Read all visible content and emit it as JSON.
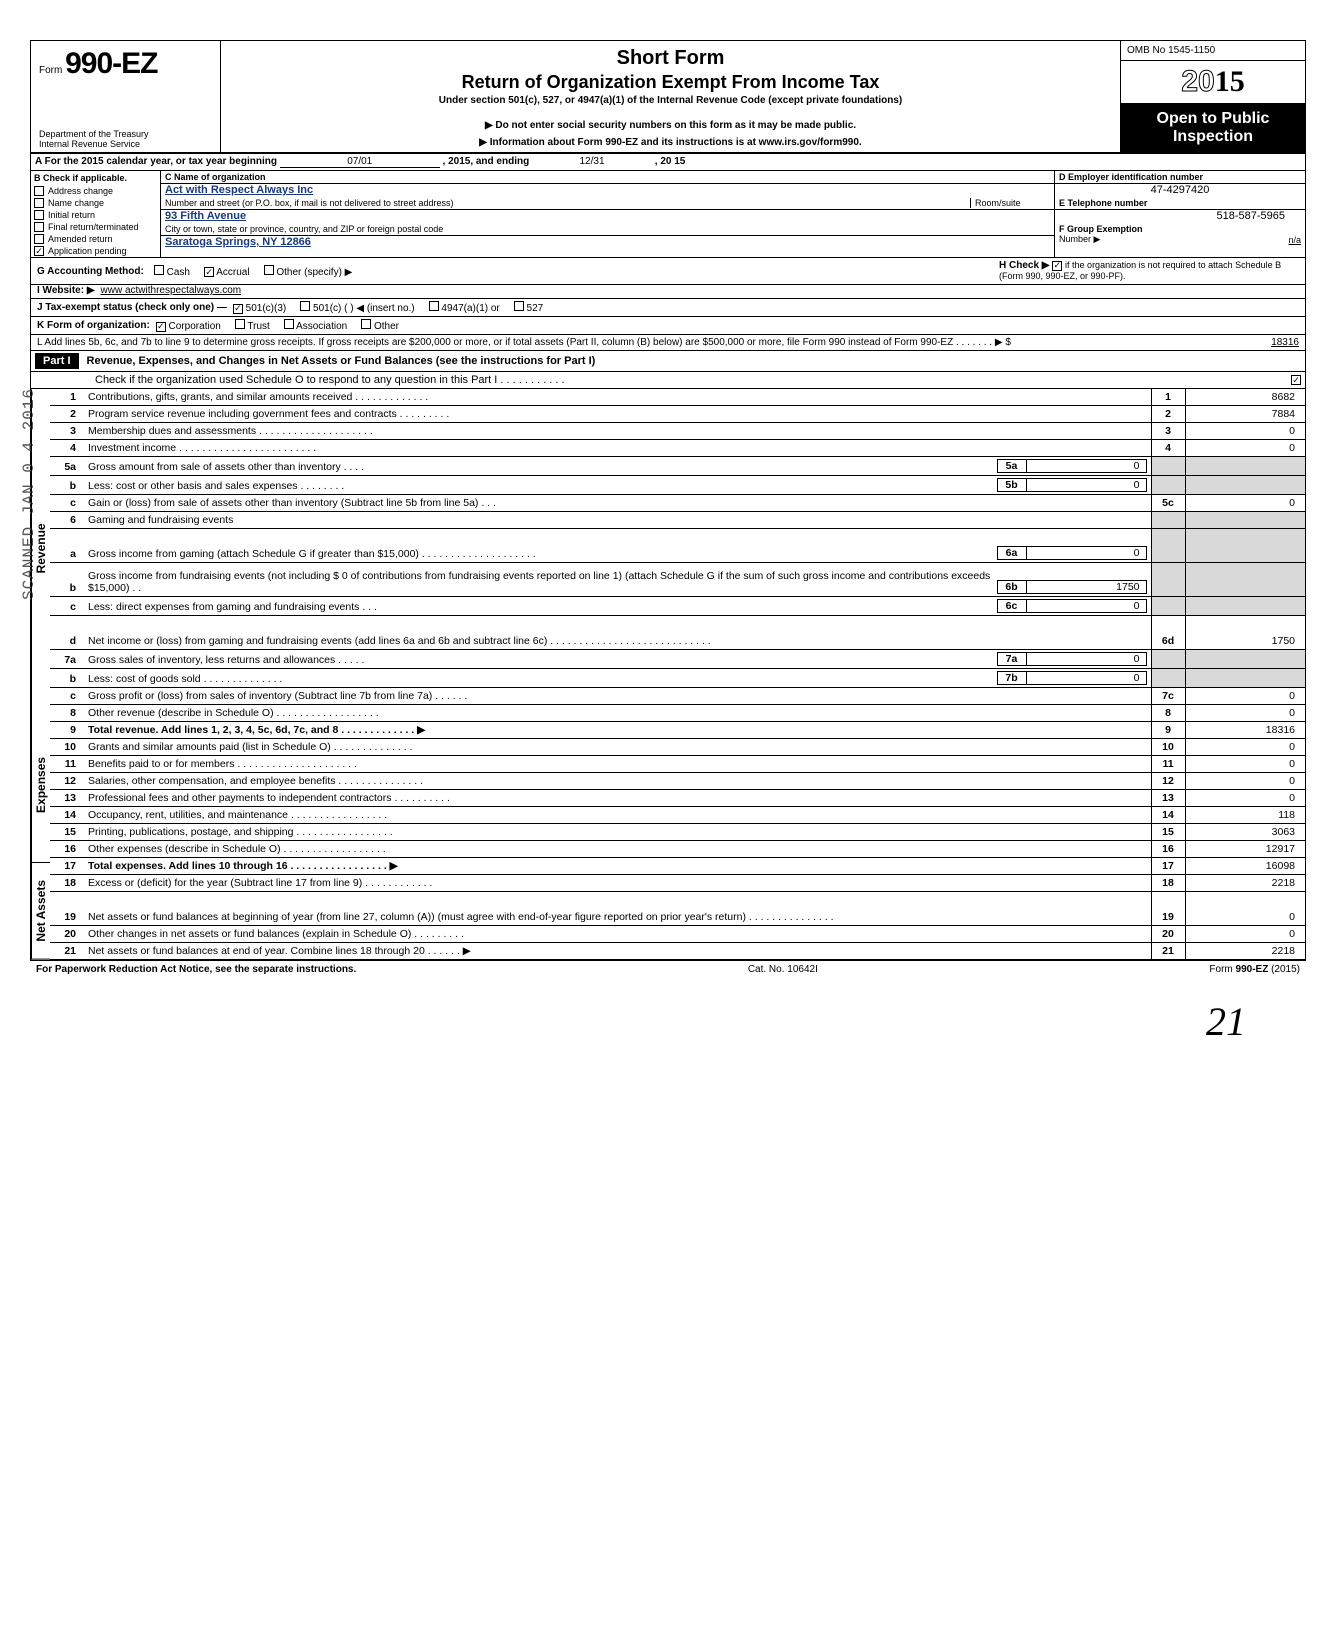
{
  "header": {
    "form_prefix": "Form",
    "form_number": "990-EZ",
    "dept1": "Department of the Treasury",
    "dept2": "Internal Revenue Service",
    "title1": "Short Form",
    "title2": "Return of Organization Exempt From Income Tax",
    "subtitle": "Under section 501(c), 527, or 4947(a)(1) of the Internal Revenue Code (except private foundations)",
    "warn": "▶ Do not enter social security numbers on this form as it may be made public.",
    "info": "▶ Information about Form 990-EZ and its instructions is at www.irs.gov/form990.",
    "omb": "OMB No 1545-1150",
    "year": "2015",
    "year_outline": "20",
    "open1": "Open to Public",
    "open2": "Inspection"
  },
  "lineA": {
    "label_a": "A For the 2015 calendar year, or tax year beginning",
    "begin": "07/01",
    "mid": ", 2015, and ending",
    "end_m": "12/31",
    "end_y": ", 20   15"
  },
  "colB": {
    "hdr": "B Check if applicable.",
    "items": [
      "Address change",
      "Name change",
      "Initial return",
      "Final return/terminated",
      "Amended return",
      "Application pending"
    ],
    "checked_idx": 5
  },
  "colC": {
    "c_hdr": "C Name of organization",
    "org": "Act with Respect Always  Inc",
    "addr_hdr": "Number and street (or P.O. box, if mail is not delivered to street address)",
    "room_hdr": "Room/suite",
    "addr": "93 Fifth Avenue",
    "city_hdr": "City or town, state or province, country, and ZIP or foreign postal code",
    "city": "Saratoga Springs, NY 12866"
  },
  "colD": {
    "d_hdr": "D Employer identification number",
    "ein": "47-4297420",
    "e_hdr": "E Telephone number",
    "phone": "518-587-5965",
    "f_hdr": "F Group Exemption",
    "f_hdr2": "Number ▶",
    "f_val": "n/a"
  },
  "G": {
    "label": "G Accounting Method:",
    "opts": [
      "Cash",
      "Accrual",
      "Other (specify) ▶"
    ],
    "checked": 1
  },
  "H": {
    "label": "H Check ▶",
    "text": "if the organization is not required to attach Schedule B (Form 990, 990-EZ, or 990-PF).",
    "checked": true
  },
  "I": {
    "label": "I  Website: ▶",
    "val": "www actwithrespectalways.com"
  },
  "J": {
    "label": "J Tax-exempt status (check only one) —",
    "opts": [
      "501(c)(3)",
      "501(c) (       ) ◀ (insert no.)",
      "4947(a)(1) or",
      "527"
    ],
    "checked": 0
  },
  "K": {
    "label": "K Form of organization:",
    "opts": [
      "Corporation",
      "Trust",
      "Association",
      "Other"
    ],
    "checked": 0
  },
  "L": {
    "text": "L Add lines 5b, 6c, and 7b to line 9 to determine gross receipts. If gross receipts are $200,000 or more, or if total assets (Part II, column (B) below) are $500,000 or more, file Form 990 instead of Form 990-EZ   .   .   .   .   .   .   .   ▶  $",
    "val": "18316"
  },
  "PartI": {
    "hdr": "Part I",
    "title": "Revenue, Expenses, and Changes in Net Assets or Fund Balances (see the instructions for Part I)",
    "schedO": "Check if the organization used Schedule O to respond to any question in this Part I .  .  .  .  .  .  .  .  .  .  .",
    "schedO_checked": true
  },
  "sections": {
    "revenue": "Revenue",
    "expenses": "Expenses",
    "netassets": "Net Assets",
    "scanned": "SCANNED JAN 0 4 2016"
  },
  "rows": [
    {
      "ln": "1",
      "desc": "Contributions, gifts, grants, and similar amounts received .   .   .   .   .   .   .   .   .   .   .   .   .",
      "box": "1",
      "amt": "8682"
    },
    {
      "ln": "2",
      "desc": "Program service revenue including government fees and contracts    .   .   .   .   .   .   .   .   .",
      "box": "2",
      "amt": "7884"
    },
    {
      "ln": "3",
      "desc": "Membership dues and assessments .   .   .   .   .   .   .   .   .   .   .   .   .   .   .   .   .   .   .   .",
      "box": "3",
      "amt": "0"
    },
    {
      "ln": "4",
      "desc": "Investment income     .   .   .   .   .   .   .   .   .   .   .   .   .   .   .   .   .   .   .   .   .   .   .   .",
      "box": "4",
      "amt": "0"
    },
    {
      "ln": "5a",
      "desc": "Gross amount from sale of assets other than inventory    .   .   .   .",
      "mbox": "5a",
      "mamt": "0",
      "shade": true
    },
    {
      "ln": "b",
      "desc": "Less: cost or other basis and sales expenses .   .   .   .   .   .   .   .",
      "mbox": "5b",
      "mamt": "0",
      "shade": true
    },
    {
      "ln": "c",
      "desc": "Gain or (loss) from sale of assets other than inventory (Subtract line 5b from line 5a) .   .   .",
      "box": "5c",
      "amt": "0"
    },
    {
      "ln": "6",
      "desc": "Gaming and fundraising events",
      "noborder": true,
      "shade": true
    },
    {
      "ln": "a",
      "desc": "Gross income from gaming (attach Schedule G if greater than $15,000) .   .   .   .   .   .   .   .   .   .   .   .   .   .   .   .   .   .   .   .",
      "mbox": "6a",
      "mamt": "0",
      "shade": true,
      "tall": true
    },
    {
      "ln": "b",
      "desc": "Gross income from fundraising events (not including  $                     0 of contributions from fundraising events reported on line 1) (attach Schedule G if the sum of such gross income and contributions exceeds $15,000) .   .",
      "mbox": "6b",
      "mamt": "1750",
      "shade": true,
      "tall": true
    },
    {
      "ln": "c",
      "desc": "Less: direct expenses from gaming and fundraising events    .   .   .",
      "mbox": "6c",
      "mamt": "0",
      "shade": true
    },
    {
      "ln": "d",
      "desc": "Net income or (loss) from gaming and fundraising events (add lines 6a and 6b and subtract line 6c)    .   .   .   .   .   .   .   .   .   .   .   .   .   .   .   .   .   .   .   .   .   .   .   .   .   .   .   .",
      "box": "6d",
      "amt": "1750",
      "tall": true
    },
    {
      "ln": "7a",
      "desc": "Gross sales of inventory, less returns and allowances   .   .   .   .   .",
      "mbox": "7a",
      "mamt": "0",
      "shade": true
    },
    {
      "ln": "b",
      "desc": "Less: cost of goods sold    .   .   .   .   .   .   .   .   .   .   .   .   .   .",
      "mbox": "7b",
      "mamt": "0",
      "shade": true
    },
    {
      "ln": "c",
      "desc": "Gross profit or (loss) from sales of inventory (Subtract line 7b from line 7a)   .   .   .   .   .   .",
      "box": "7c",
      "amt": "0"
    },
    {
      "ln": "8",
      "desc": "Other revenue (describe in Schedule O)   .   .   .   .   .   .   .   .   .   .   .   .   .   .   .   .   .   .",
      "box": "8",
      "amt": "0"
    },
    {
      "ln": "9",
      "desc": "Total revenue. Add lines 1, 2, 3, 4, 5c, 6d, 7c, and 8   .   .   .   .   .   .   .   .   .   .   .   .   .   ▶",
      "box": "9",
      "amt": "18316",
      "bold": true
    },
    {
      "ln": "10",
      "desc": "Grants and similar amounts paid (list in Schedule O)    .   .   .   .   .   .   .   .   .   .   .   .   .   .",
      "box": "10",
      "amt": "0",
      "sec": "exp"
    },
    {
      "ln": "11",
      "desc": "Benefits paid to or for members   .   .   .   .   .   .   .   .   .   .   .   .   .   .   .   .   .   .   .   .   .",
      "box": "11",
      "amt": "0",
      "sec": "exp"
    },
    {
      "ln": "12",
      "desc": "Salaries, other compensation, and employee benefits .   .   .   .   .   .   .   .   .   .   .   .   .   .   .",
      "box": "12",
      "amt": "0",
      "sec": "exp"
    },
    {
      "ln": "13",
      "desc": "Professional fees and other payments to independent contractors .   .   .   .   .   .   .   .   .   .",
      "box": "13",
      "amt": "0",
      "sec": "exp"
    },
    {
      "ln": "14",
      "desc": "Occupancy, rent, utilities, and maintenance    .   .   .   .   .   .   .   .   .   .   .   .   .   .   .   .   .",
      "box": "14",
      "amt": "118",
      "sec": "exp"
    },
    {
      "ln": "15",
      "desc": "Printing, publications, postage, and shipping .   .   .   .   .   .   .   .   .   .   .   .   .   .   .   .   .",
      "box": "15",
      "amt": "3063",
      "sec": "exp"
    },
    {
      "ln": "16",
      "desc": "Other expenses (describe in Schedule O)   .   .   .   .   .   .   .   .   .   .   .   .   .   .   .   .   .   .",
      "box": "16",
      "amt": "12917",
      "sec": "exp"
    },
    {
      "ln": "17",
      "desc": "Total expenses. Add lines 10 through 16   .   .   .   .   .   .   .   .   .   .   .   .   .   .   .   .   .   ▶",
      "box": "17",
      "amt": "16098",
      "sec": "exp",
      "bold": true
    },
    {
      "ln": "18",
      "desc": "Excess or (deficit) for the year (Subtract line 17 from line 9)   .   .   .   .   .   .   .   .   .   .   .   .",
      "box": "18",
      "amt": "2218",
      "sec": "na"
    },
    {
      "ln": "19",
      "desc": "Net assets or fund balances at beginning of year (from line 27, column (A)) (must agree with end-of-year figure reported on prior year's return)    .   .   .   .   .   .   .   .   .   .   .   .   .   .   .",
      "box": "19",
      "amt": "0",
      "sec": "na",
      "tall": true
    },
    {
      "ln": "20",
      "desc": "Other changes in net assets or fund balances (explain in Schedule O) .   .   .   .   .   .   .   .   .",
      "box": "20",
      "amt": "0",
      "sec": "na"
    },
    {
      "ln": "21",
      "desc": "Net assets or fund balances at end of year. Combine lines 18 through 20    .   .   .   .   .   .   ▶",
      "box": "21",
      "amt": "2218",
      "sec": "na"
    }
  ],
  "footer": {
    "left": "For Paperwork Reduction Act Notice, see the separate instructions.",
    "mid": "Cat. No. 10642I",
    "right": "Form 990-EZ (2015)"
  },
  "handwritten": "21",
  "colors": {
    "ink": "#000000",
    "fill_blue": "#1a3a7a",
    "shade": "#d9d9d9"
  }
}
